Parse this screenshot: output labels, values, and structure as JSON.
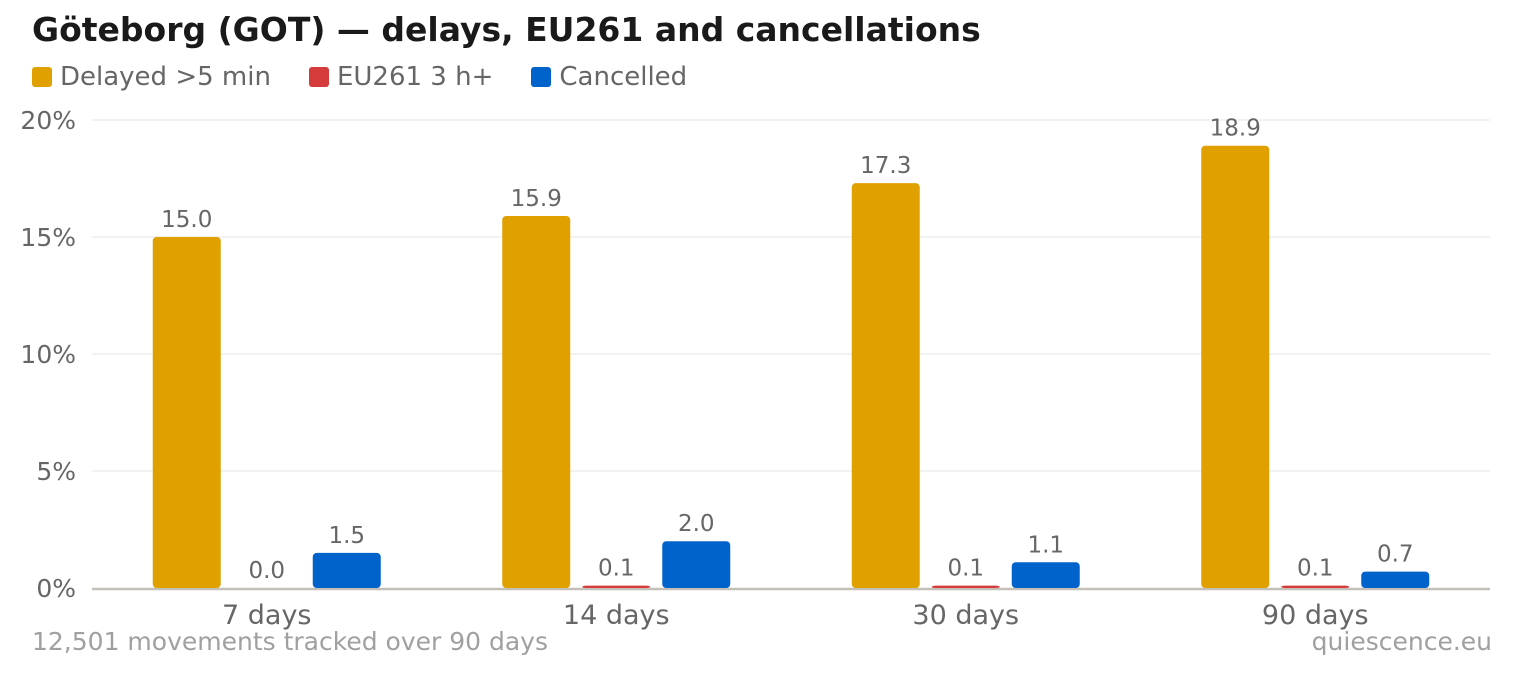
{
  "chart_data": {
    "type": "bar",
    "title": "Göteborg (GOT) — delays, EU261 and cancellations",
    "categories": [
      "7 days",
      "14 days",
      "30 days",
      "90 days"
    ],
    "series": [
      {
        "name": "Delayed >5 min",
        "color": "#e0a000",
        "values": [
          15.0,
          15.9,
          17.3,
          18.9
        ],
        "labels": [
          "15.0",
          "15.9",
          "17.3",
          "18.9"
        ]
      },
      {
        "name": "EU261 3 h+",
        "color": "#d63b3b",
        "values": [
          0.0,
          0.1,
          0.1,
          0.1
        ],
        "labels": [
          "0.0",
          "0.1",
          "0.1",
          "0.1"
        ]
      },
      {
        "name": "Cancelled",
        "color": "#0063cc",
        "values": [
          1.5,
          2.0,
          1.1,
          0.7
        ],
        "labels": [
          "1.5",
          "2.0",
          "1.1",
          "0.7"
        ]
      }
    ],
    "ylim": [
      0,
      20
    ],
    "yticks": [
      0,
      5,
      10,
      15,
      20
    ],
    "ytick_labels": [
      "0%",
      "5%",
      "10%",
      "15%",
      "20%"
    ],
    "grid": true,
    "legend_position": "top-left"
  },
  "footer": {
    "note": "12,501 movements tracked over 90 days",
    "source": "quiescence.eu"
  }
}
